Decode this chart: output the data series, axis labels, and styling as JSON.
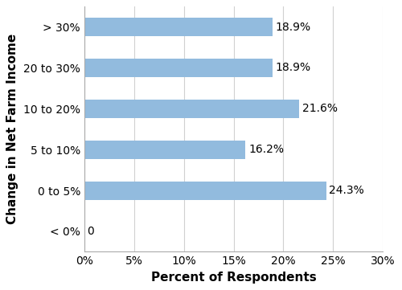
{
  "categories": [
    "< 0%",
    "0 to 5%",
    "5 to 10%",
    "10 to 20%",
    "20 to 30%",
    "> 30%"
  ],
  "values": [
    0,
    24.3,
    16.2,
    21.6,
    18.9,
    18.9
  ],
  "labels": [
    "0",
    "24.3%",
    "16.2%",
    "21.6%",
    "18.9%",
    "18.9%"
  ],
  "bar_color": "#92BBDE",
  "xlabel": "Percent of Respondents",
  "ylabel": "Change in Net Farm Income",
  "xlim": [
    0,
    30
  ],
  "xticks": [
    0,
    5,
    10,
    15,
    20,
    25,
    30
  ],
  "xtick_labels": [
    "0%",
    "5%",
    "10%",
    "15%",
    "20%",
    "25%",
    "30%"
  ],
  "bar_height": 0.45,
  "label_fontsize": 10,
  "axis_label_fontsize": 11,
  "tick_fontsize": 10,
  "background_color": "#ffffff",
  "grid_color": "#d0d0d0",
  "spine_color": "#aaaaaa"
}
